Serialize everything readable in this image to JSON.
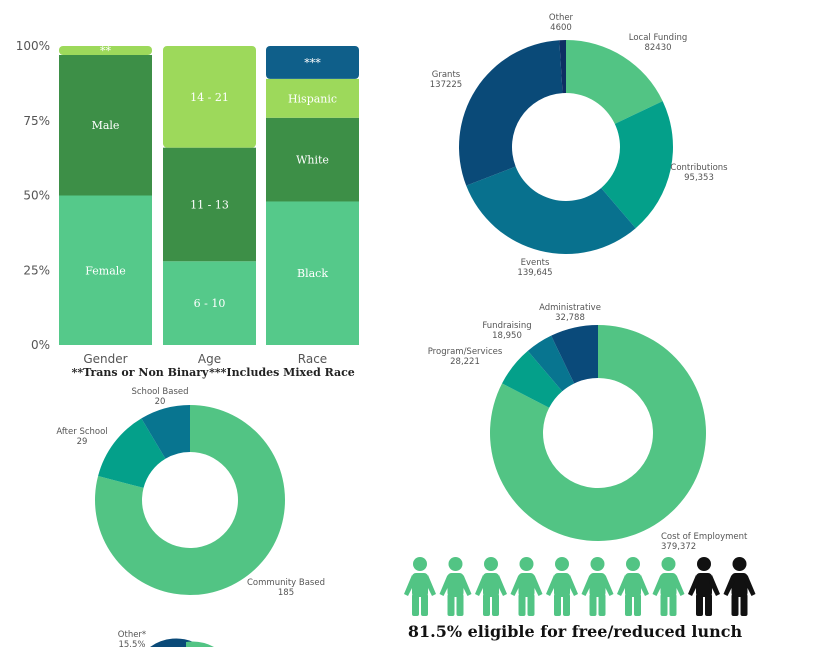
{
  "chart_data": [
    {
      "type": "bar",
      "stacked": true,
      "categories": [
        "Gender",
        "Age",
        "Race"
      ],
      "ylim": [
        0,
        100
      ],
      "yticks": [
        "0%",
        "25%",
        "50%",
        "75%",
        "100%"
      ],
      "grid": false,
      "stacks": [
        {
          "category": "Gender",
          "segments": [
            {
              "label": "Female",
              "value": 50,
              "color": "#55c98a"
            },
            {
              "label": "Male",
              "value": 47,
              "color": "#3d8f47"
            },
            {
              "label": "**",
              "value": 3,
              "color": "#9dd95b"
            }
          ]
        },
        {
          "category": "Age",
          "segments": [
            {
              "label": "6 - 10",
              "value": 28,
              "color": "#55c98a"
            },
            {
              "label": "11 - 13",
              "value": 38,
              "color": "#3d8f47"
            },
            {
              "label": "14 - 21",
              "value": 34,
              "color": "#9dd95b"
            }
          ]
        },
        {
          "category": "Race",
          "segments": [
            {
              "label": "Black",
              "value": 48,
              "color": "#55c98a"
            },
            {
              "label": "White",
              "value": 28,
              "color": "#3d8f47"
            },
            {
              "label": "Hispanic",
              "value": 13,
              "color": "#9dd95b"
            },
            {
              "label": "***",
              "value": 11,
              "color": "#0f5f8a"
            }
          ]
        }
      ],
      "notes": [
        "**Trans or Non Binary",
        "***Includes Mixed Race"
      ]
    },
    {
      "type": "pie",
      "donut": true,
      "slices": [
        {
          "label": "Local Funding",
          "value_text": "82430",
          "value": 82430,
          "color": "#52c484"
        },
        {
          "label": "Contributions",
          "value_text": "95,353",
          "value": 95353,
          "color": "#04a08a"
        },
        {
          "label": "Events",
          "value_text": "139,645",
          "value": 139645,
          "color": "#08718e"
        },
        {
          "label": "Grants",
          "value_text": "137225",
          "value": 137225,
          "color": "#0a4a78"
        },
        {
          "label": "Other",
          "value_text": "4600",
          "value": 4600,
          "color": "#0d2f63"
        }
      ]
    },
    {
      "type": "pie",
      "donut": true,
      "slices": [
        {
          "label": "Cost of Employment",
          "value_text": "379,372",
          "value": 379372,
          "color": "#52c484"
        },
        {
          "label": "Program/Services",
          "value_text": "28,221",
          "value": 28221,
          "color": "#04a08a"
        },
        {
          "label": "Fundraising",
          "value_text": "18,950",
          "value": 18950,
          "color": "#087590"
        },
        {
          "label": "Administrative",
          "value_text": "32,788",
          "value": 32788,
          "color": "#0a4a7a"
        }
      ]
    },
    {
      "type": "pie",
      "donut": true,
      "slices": [
        {
          "label": "Community Based",
          "value_text": "185",
          "value": 185,
          "color": "#52c484"
        },
        {
          "label": "After School",
          "value_text": "29",
          "value": 29,
          "color": "#04a08a"
        },
        {
          "label": "School Based",
          "value_text": "20",
          "value": 20,
          "color": "#087590"
        }
      ]
    }
  ],
  "partial_chart": {
    "label": "Other*",
    "value_text": "15.5%"
  },
  "lunch": {
    "text": "81.5% eligible for free/reduced lunch",
    "eligible_share": 0.815,
    "figures_total": 10,
    "figures_highlighted": 8,
    "highlight_color": "#52c484",
    "other_color": "#111111"
  }
}
